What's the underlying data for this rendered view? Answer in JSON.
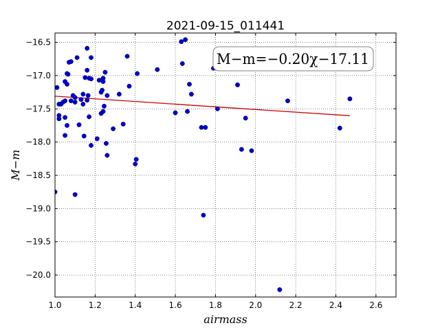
{
  "chart_data": {
    "type": "scatter",
    "title": "2021-09-15_011441",
    "xlabel": "airmass",
    "ylabel": "M−m",
    "annotation": "M−m=−0.20χ−17.11",
    "xlim": [
      1.0,
      2.7
    ],
    "ylim": [
      -20.33,
      -16.36
    ],
    "y_inverted": true,
    "grid": true,
    "xticks": [
      1.0,
      1.2,
      1.4,
      1.6,
      1.8,
      2.0,
      2.2,
      2.4,
      2.6
    ],
    "xtick_labels": [
      "1.0",
      "1.2",
      "1.4",
      "1.6",
      "1.8",
      "2.0",
      "2.2",
      "2.4",
      "2.6"
    ],
    "yticks": [
      -16.5,
      -17.0,
      -17.5,
      -18.0,
      -18.5,
      -19.0,
      -19.5,
      -20.0
    ],
    "ytick_labels": [
      "−16.5",
      "−17.0",
      "−17.5",
      "−18.0",
      "−18.5",
      "−19.0",
      "−19.5",
      "−20.0"
    ],
    "fit": {
      "slope": -0.2,
      "intercept": -17.11,
      "x_range": [
        1.0,
        2.47
      ],
      "color": "#cc0000"
    },
    "point_color": "#0000cc",
    "points": [
      [
        1.0,
        -18.75
      ],
      [
        1.01,
        -17.18
      ],
      [
        1.02,
        -17.43
      ],
      [
        1.02,
        -17.6
      ],
      [
        1.02,
        -17.65
      ],
      [
        1.03,
        -17.43
      ],
      [
        1.04,
        -17.4
      ],
      [
        1.05,
        -17.38
      ],
      [
        1.05,
        -17.09
      ],
      [
        1.05,
        -17.63
      ],
      [
        1.05,
        -17.9
      ],
      [
        1.06,
        -17.13
      ],
      [
        1.06,
        -17.75
      ],
      [
        1.06,
        -16.97
      ],
      [
        1.065,
        -16.98
      ],
      [
        1.07,
        -16.8
      ],
      [
        1.08,
        -16.79
      ],
      [
        1.08,
        -17.38
      ],
      [
        1.09,
        -17.3
      ],
      [
        1.1,
        -17.33
      ],
      [
        1.1,
        -17.4
      ],
      [
        1.1,
        -18.79
      ],
      [
        1.11,
        -16.73
      ],
      [
        1.12,
        -17.74
      ],
      [
        1.13,
        -17.36
      ],
      [
        1.14,
        -17.28
      ],
      [
        1.14,
        -17.43
      ],
      [
        1.145,
        -17.91
      ],
      [
        1.15,
        -17.03
      ],
      [
        1.16,
        -16.59
      ],
      [
        1.16,
        -16.92
      ],
      [
        1.16,
        -17.37
      ],
      [
        1.165,
        -17.3
      ],
      [
        1.17,
        -17.62
      ],
      [
        1.17,
        -17.04
      ],
      [
        1.18,
        -16.73
      ],
      [
        1.18,
        -17.05
      ],
      [
        1.18,
        -18.05
      ],
      [
        1.21,
        -17.95
      ],
      [
        1.22,
        -17.07
      ],
      [
        1.23,
        -17.25
      ],
      [
        1.23,
        -17.57
      ],
      [
        1.235,
        -17.22
      ],
      [
        1.24,
        -17.04
      ],
      [
        1.24,
        -17.54
      ],
      [
        1.24,
        -17.09
      ],
      [
        1.245,
        -17.46
      ],
      [
        1.25,
        -16.95
      ],
      [
        1.255,
        -18.02
      ],
      [
        1.26,
        -18.2
      ],
      [
        1.26,
        -17.3
      ],
      [
        1.29,
        -17.8
      ],
      [
        1.32,
        -17.28
      ],
      [
        1.34,
        -17.73
      ],
      [
        1.36,
        -16.71
      ],
      [
        1.37,
        -17.16
      ],
      [
        1.4,
        -18.33
      ],
      [
        1.405,
        -18.26
      ],
      [
        1.41,
        -16.97
      ],
      [
        1.51,
        -16.91
      ],
      [
        1.6,
        -17.56
      ],
      [
        1.63,
        -16.49
      ],
      [
        1.635,
        -16.82
      ],
      [
        1.65,
        -16.46
      ],
      [
        1.66,
        -17.54
      ],
      [
        1.67,
        -17.13
      ],
      [
        1.68,
        -17.28
      ],
      [
        1.73,
        -17.78
      ],
      [
        1.74,
        -19.1
      ],
      [
        1.75,
        -17.78
      ],
      [
        1.79,
        -16.89
      ],
      [
        1.81,
        -17.5
      ],
      [
        1.91,
        -17.14
      ],
      [
        1.93,
        -18.11
      ],
      [
        1.95,
        -17.64
      ],
      [
        1.98,
        -18.13
      ],
      [
        2.12,
        -20.22
      ],
      [
        2.16,
        -17.38
      ],
      [
        2.42,
        -17.79
      ],
      [
        2.47,
        -17.35
      ]
    ]
  }
}
